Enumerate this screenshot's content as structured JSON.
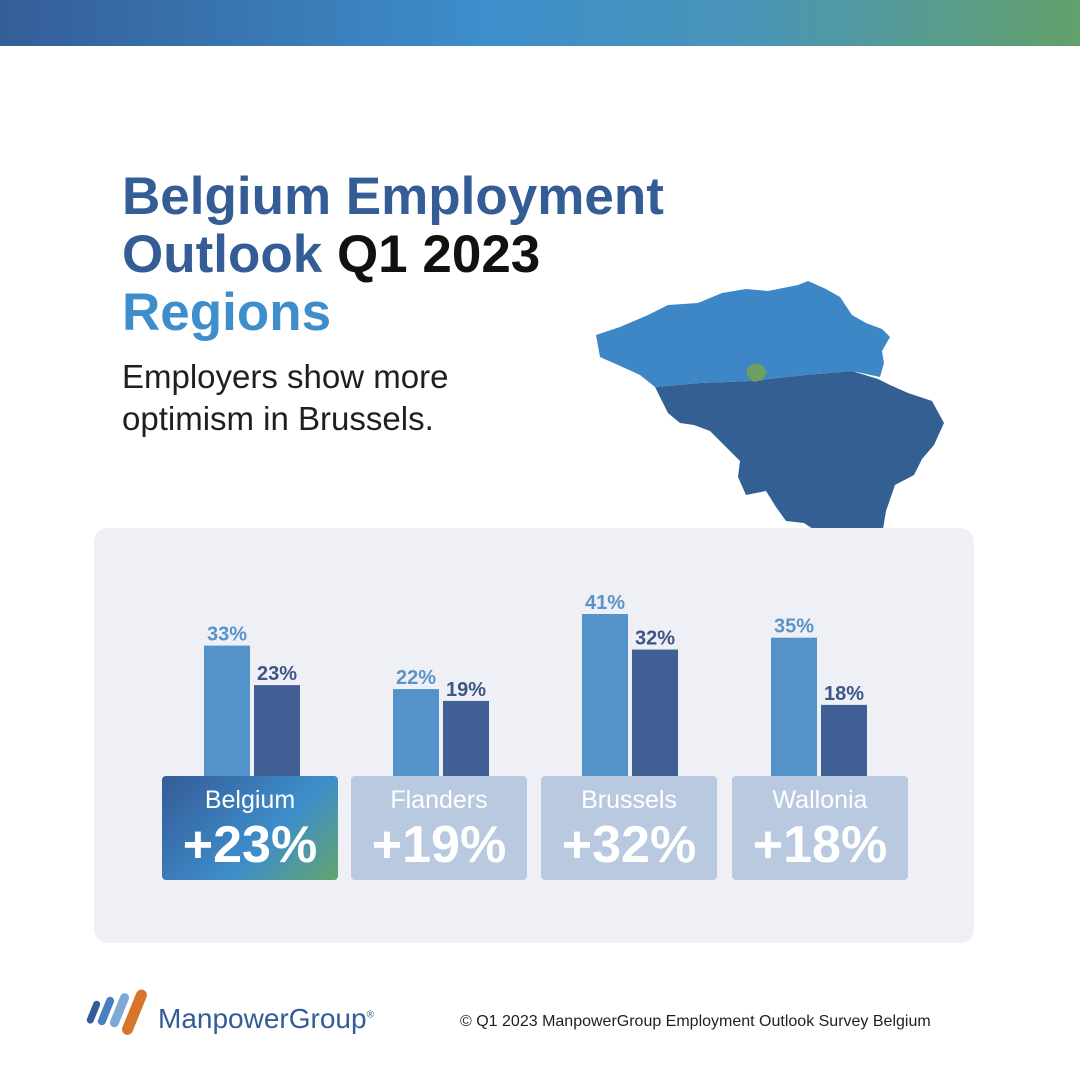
{
  "header": {
    "title_line1": "Belgium Employment",
    "title_line2a": "Outlook",
    "title_line2b": "Q1 2023",
    "title_line3": "Regions",
    "subtitle": "Employers show more optimism in Brussels."
  },
  "colors": {
    "bar_light": "#5493c9",
    "bar_dark": "#405f95",
    "label_light": "#5a93c8",
    "label_dark": "#3d5688"
  },
  "chart_data": {
    "type": "bar",
    "categories": [
      "Belgium",
      "Flanders",
      "Brussels",
      "Wallonia"
    ],
    "series": [
      {
        "values": [
          33,
          22,
          41,
          35
        ],
        "labels": [
          "33%",
          "22%",
          "41%",
          "35%"
        ]
      },
      {
        "values": [
          23,
          19,
          32,
          18
        ],
        "labels": [
          "23%",
          "19%",
          "32%",
          "18%"
        ]
      }
    ],
    "ylim": [
      0,
      41
    ],
    "grid": false,
    "legend": "none"
  },
  "cards": [
    {
      "name": "Belgium",
      "value": "+23%",
      "highlight": true
    },
    {
      "name": "Flanders",
      "value": "+19%",
      "highlight": false
    },
    {
      "name": "Brussels",
      "value": "+32%",
      "highlight": false
    },
    {
      "name": "Wallonia",
      "value": "+18%",
      "highlight": false
    }
  ],
  "footer": {
    "brand": "ManpowerGroup",
    "copyright": "© Q1 2023 ManpowerGroup Employment Outlook Survey Belgium"
  }
}
